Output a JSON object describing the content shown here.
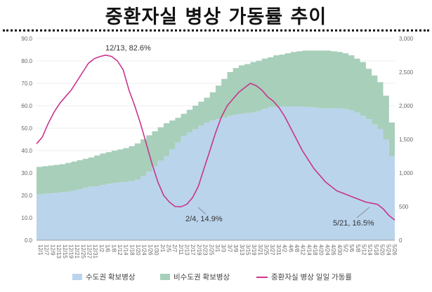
{
  "title": "중환자실 병상 가동률 추이",
  "chart_data": {
    "type": "area",
    "title": "중환자실 병상 가동률 추이",
    "left_axis": {
      "range": [
        0,
        90
      ],
      "ticks": [
        "0.0",
        "10.0",
        "20.0",
        "30.0",
        "40.0",
        "50.0",
        "60.0",
        "70.0",
        "80.0",
        "90.0"
      ]
    },
    "right_axis": {
      "range": [
        0,
        3000
      ],
      "ticks": [
        "0",
        "500",
        "1,000",
        "1,500",
        "2,000",
        "2,500",
        "3,000"
      ]
    },
    "x_tick_labels": [
      "12/1",
      "12/7",
      "12/9",
      "12/13",
      "12/15",
      "12/19",
      "12/21",
      "12/25",
      "12/27",
      "12/31",
      "1/2",
      "1/6",
      "1/8",
      "1/12",
      "1/14",
      "1/18",
      "1/20",
      "1/24",
      "1/26",
      "1/30",
      "2/1",
      "2/5",
      "2/7",
      "2/11",
      "2/13",
      "2/17",
      "2/19",
      "2/23",
      "2/25",
      "3/1",
      "3/3",
      "3/7",
      "3/9",
      "3/13",
      "3/15",
      "3/19",
      "3/21",
      "3/25",
      "3/27",
      "3/31",
      "4/2",
      "4/6",
      "4/8",
      "4/12",
      "4/14",
      "4/18",
      "4/20",
      "4/24",
      "4/26",
      "4/30",
      "5/2",
      "5/6",
      "5/8",
      "5/12",
      "5/14",
      "5/18",
      "5/20",
      "5/24",
      "5/26"
    ],
    "series": [
      {
        "name": "수도권 확보병상",
        "axis": "right",
        "color": "#bad4ec",
        "values": [
          680,
          690,
          695,
          700,
          710,
          720,
          740,
          760,
          780,
          800,
          800,
          820,
          840,
          850,
          860,
          870,
          880,
          900,
          950,
          1020,
          1100,
          1180,
          1250,
          1350,
          1450,
          1550,
          1600,
          1650,
          1700,
          1750,
          1780,
          1800,
          1820,
          1850,
          1870,
          1880,
          1890,
          1900,
          1920,
          1950,
          1980,
          1980,
          1990,
          1990,
          1990,
          1990,
          1980,
          1980,
          1970,
          1960,
          1960,
          1960,
          1960,
          1950,
          1930,
          1900,
          1850,
          1800,
          1720,
          1650,
          1500,
          1250,
          1230
        ]
      },
      {
        "name": "비수도권 확보병상",
        "axis": "right",
        "color": "#a7cfba",
        "values": [
          1090,
          1100,
          1110,
          1120,
          1130,
          1150,
          1170,
          1190,
          1210,
          1230,
          1260,
          1290,
          1310,
          1330,
          1350,
          1370,
          1400,
          1440,
          1500,
          1560,
          1620,
          1680,
          1740,
          1780,
          1820,
          1880,
          1940,
          2000,
          2060,
          2120,
          2200,
          2300,
          2400,
          2500,
          2560,
          2600,
          2620,
          2650,
          2670,
          2700,
          2720,
          2750,
          2760,
          2780,
          2800,
          2810,
          2820,
          2820,
          2820,
          2820,
          2820,
          2810,
          2800,
          2780,
          2750,
          2700,
          2650,
          2550,
          2450,
          2350,
          2150,
          1750,
          1700
        ]
      },
      {
        "name": "중환자실 병상 일일 가동률",
        "axis": "left",
        "color": "#c8358c",
        "values": [
          43,
          46,
          52,
          57,
          61,
          64,
          67,
          71,
          75,
          79,
          81,
          82,
          82.6,
          82,
          80,
          76,
          67,
          60,
          52,
          43,
          34,
          26,
          20,
          17,
          15,
          14.9,
          16,
          19,
          24,
          32,
          40,
          48,
          55,
          60,
          63,
          66,
          68,
          70,
          69,
          67,
          64,
          62,
          59,
          55,
          50,
          45,
          40,
          36,
          32,
          29,
          26,
          24,
          22,
          21,
          20,
          19,
          18,
          17,
          16.5,
          16,
          14,
          11,
          9
        ]
      }
    ],
    "annotations": [
      "12/13, 82.6%",
      "2/4, 14.9%",
      "5/21, 16.5%"
    ]
  },
  "legend": {
    "metro": "수도권 확보병상",
    "nonmetro": "비수도권 확보병상",
    "rate": "중환자실 병상 일일 가동률"
  }
}
